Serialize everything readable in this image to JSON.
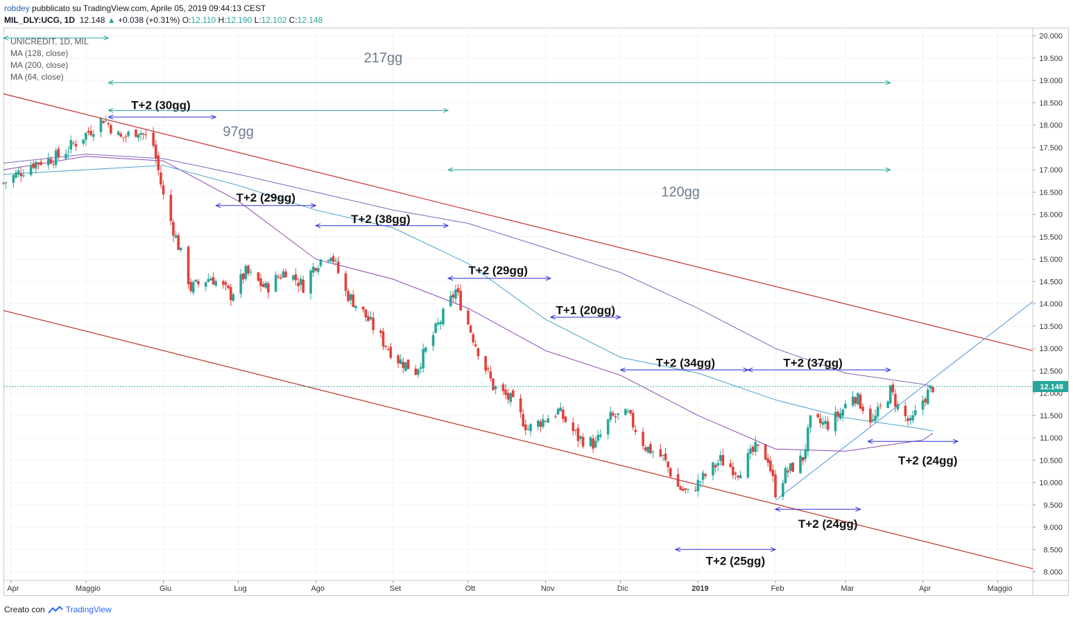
{
  "header": {
    "author": "robdey",
    "published": "pubblicato su TradingView.com, Aprile 05, 2019 09:44:13 CEST",
    "symbol": "MIL_DLY:UCG, 1D",
    "last": "12.148",
    "change": "+0.038 (+0.31%)",
    "o_label": "O:",
    "o": "12.110",
    "h_label": "H:",
    "h": "12.190",
    "l_label": "L:",
    "l": "12.102",
    "c_label": "C:",
    "c": "12.148"
  },
  "legend": {
    "name": "UNICREDIT, 1D, MIL",
    "ma1": "MA (128, close)",
    "ma2": "MA (200, close)",
    "ma3": "MA (64, close)"
  },
  "footer": {
    "created": "Creato con",
    "brand": "TradingView"
  },
  "colors": {
    "up": "#26a69a",
    "down": "#e0413c",
    "ma128": "#4a9fc9",
    "ma200": "#7b64b8",
    "ma64": "#8e44ad",
    "channel": "#c0302b",
    "trend": "#4a90d9",
    "blue_arrow": "#2b2bd6",
    "green_arrow": "#26a69a",
    "badge": "#26a69a"
  },
  "chart_data": {
    "type": "candlestick",
    "symbol": "UNICREDIT",
    "interval": "1D",
    "exchange": "MIL",
    "ylim": [
      7.9,
      20.15
    ],
    "y_ticks": [
      "20.000",
      "19.500",
      "19.000",
      "18.500",
      "18.000",
      "17.500",
      "17.000",
      "16.500",
      "16.000",
      "15.500",
      "15.000",
      "14.500",
      "14.000",
      "13.500",
      "13.000",
      "12.500",
      "12.000",
      "11.500",
      "11.000",
      "10.500",
      "10.000",
      "9.500",
      "9.000",
      "8.500",
      "8.000"
    ],
    "x_ticks": [
      {
        "label": "Apr",
        "date": "2018-04-01"
      },
      {
        "label": "Maggio",
        "date": "2018-05-01"
      },
      {
        "label": "Giu",
        "date": "2018-06-01"
      },
      {
        "label": "Lug",
        "date": "2018-07-01"
      },
      {
        "label": "Ago",
        "date": "2018-08-01"
      },
      {
        "label": "Set",
        "date": "2018-09-01"
      },
      {
        "label": "Ott",
        "date": "2018-10-01"
      },
      {
        "label": "Nov",
        "date": "2018-11-01"
      },
      {
        "label": "Dic",
        "date": "2018-12-01"
      },
      {
        "label": "2019",
        "date": "2019-01-01"
      },
      {
        "label": "Feb",
        "date": "2019-02-01"
      },
      {
        "label": "Mar",
        "date": "2019-03-01"
      },
      {
        "label": "Apr",
        "date": "2019-04-01"
      },
      {
        "label": "Maggio",
        "date": "2019-05-01"
      }
    ],
    "x_range": [
      "2018-03-29",
      "2019-05-15"
    ],
    "last_price": 12.148,
    "last_price_label": "12.148",
    "close_path": [
      [
        "2018-03-29",
        16.7
      ],
      [
        "2018-04-10",
        17.15
      ],
      [
        "2018-04-20",
        17.3
      ],
      [
        "2018-05-01",
        17.8
      ],
      [
        "2018-05-08",
        18.15
      ],
      [
        "2018-05-15",
        17.7
      ],
      [
        "2018-05-22",
        17.9
      ],
      [
        "2018-05-28",
        17.55
      ],
      [
        "2018-06-01",
        16.4
      ],
      [
        "2018-06-07",
        15.3
      ],
      [
        "2018-06-12",
        14.35
      ],
      [
        "2018-06-20",
        14.6
      ],
      [
        "2018-06-28",
        14.2
      ],
      [
        "2018-07-04",
        14.7
      ],
      [
        "2018-07-12",
        14.35
      ],
      [
        "2018-07-20",
        14.75
      ],
      [
        "2018-07-27",
        14.4
      ],
      [
        "2018-08-01",
        14.9
      ],
      [
        "2018-08-07",
        15.15
      ],
      [
        "2018-08-13",
        14.25
      ],
      [
        "2018-08-20",
        13.8
      ],
      [
        "2018-08-28",
        13.15
      ],
      [
        "2018-09-03",
        12.75
      ],
      [
        "2018-09-10",
        12.5
      ],
      [
        "2018-09-17",
        13.3
      ],
      [
        "2018-09-26",
        14.3
      ],
      [
        "2018-10-04",
        13.1
      ],
      [
        "2018-10-11",
        12.15
      ],
      [
        "2018-10-18",
        11.85
      ],
      [
        "2018-10-25",
        11.2
      ],
      [
        "2018-10-31",
        11.4
      ],
      [
        "2018-11-06",
        11.6
      ],
      [
        "2018-11-14",
        11.0
      ],
      [
        "2018-11-21",
        10.85
      ],
      [
        "2018-11-27",
        11.45
      ],
      [
        "2018-12-04",
        11.5
      ],
      [
        "2018-12-11",
        10.8
      ],
      [
        "2018-12-18",
        10.55
      ],
      [
        "2018-12-24",
        9.9
      ],
      [
        "2018-12-28",
        9.75
      ],
      [
        "2019-01-03",
        10.1
      ],
      [
        "2019-01-10",
        10.5
      ],
      [
        "2019-01-17",
        10.25
      ],
      [
        "2019-01-24",
        10.75
      ],
      [
        "2019-01-29",
        10.55
      ],
      [
        "2019-02-01",
        9.8
      ],
      [
        "2019-02-05",
        10.2
      ],
      [
        "2019-02-12",
        10.55
      ],
      [
        "2019-02-15",
        11.35
      ],
      [
        "2019-02-22",
        11.3
      ],
      [
        "2019-02-27",
        11.55
      ],
      [
        "2019-03-04",
        12.0
      ],
      [
        "2019-03-08",
        11.7
      ],
      [
        "2019-03-12",
        11.35
      ],
      [
        "2019-03-19",
        12.05
      ],
      [
        "2019-03-22",
        11.7
      ],
      [
        "2019-03-27",
        11.3
      ],
      [
        "2019-04-01",
        11.85
      ],
      [
        "2019-04-05",
        12.148
      ]
    ],
    "moving_averages": [
      {
        "name": "MA (64, close)",
        "points": [
          [
            "2018-03-29",
            17.0
          ],
          [
            "2018-05-01",
            17.3
          ],
          [
            "2018-06-01",
            17.2
          ],
          [
            "2018-07-01",
            16.3
          ],
          [
            "2018-08-01",
            15.0
          ],
          [
            "2018-09-01",
            14.55
          ],
          [
            "2018-10-01",
            13.9
          ],
          [
            "2018-11-01",
            12.95
          ],
          [
            "2018-12-01",
            12.4
          ],
          [
            "2019-01-01",
            11.5
          ],
          [
            "2019-02-01",
            10.75
          ],
          [
            "2019-03-01",
            10.7
          ],
          [
            "2019-04-01",
            10.95
          ],
          [
            "2019-04-05",
            11.1
          ]
        ]
      },
      {
        "name": "MA (128, close)",
        "points": [
          [
            "2018-03-29",
            16.9
          ],
          [
            "2018-05-01",
            17.0
          ],
          [
            "2018-06-01",
            17.1
          ],
          [
            "2018-07-01",
            16.65
          ],
          [
            "2018-08-01",
            16.1
          ],
          [
            "2018-09-01",
            15.7
          ],
          [
            "2018-10-01",
            14.9
          ],
          [
            "2018-11-01",
            13.65
          ],
          [
            "2018-12-01",
            12.8
          ],
          [
            "2019-01-01",
            12.45
          ],
          [
            "2019-02-01",
            11.85
          ],
          [
            "2019-03-01",
            11.45
          ],
          [
            "2019-04-01",
            11.2
          ],
          [
            "2019-04-05",
            11.15
          ]
        ]
      },
      {
        "name": "MA (200, close)",
        "points": [
          [
            "2018-03-29",
            17.15
          ],
          [
            "2018-05-01",
            17.35
          ],
          [
            "2018-06-01",
            17.25
          ],
          [
            "2018-07-01",
            16.9
          ],
          [
            "2018-08-01",
            16.5
          ],
          [
            "2018-09-01",
            16.1
          ],
          [
            "2018-10-01",
            15.8
          ],
          [
            "2018-11-01",
            15.25
          ],
          [
            "2018-12-01",
            14.7
          ],
          [
            "2019-01-01",
            13.9
          ],
          [
            "2019-02-01",
            13.0
          ],
          [
            "2019-03-01",
            12.45
          ],
          [
            "2019-04-01",
            12.2
          ],
          [
            "2019-04-05",
            12.15
          ]
        ]
      }
    ],
    "channel_lines": [
      {
        "from": [
          "2018-03-29",
          18.7
        ],
        "to": [
          "2019-05-15",
          12.95
        ]
      },
      {
        "from": [
          "2018-03-29",
          13.85
        ],
        "to": [
          "2019-05-15",
          8.07
        ]
      }
    ],
    "trend_line": {
      "from": [
        "2019-02-01",
        9.6
      ],
      "to": [
        "2019-05-15",
        14.05
      ]
    },
    "annotations": [
      {
        "text": "T+2 (30gg)",
        "from": "2018-05-10",
        "to": "2018-06-22",
        "y": 18.18,
        "color": "blue",
        "label_date": "2018-05-31",
        "label_y": 18.45
      },
      {
        "text": "T+2 (29gg)",
        "from": "2018-06-22",
        "to": "2018-08-01",
        "y": 16.2,
        "color": "blue",
        "label_date": "2018-07-12",
        "label_y": 16.38
      },
      {
        "text": "T+2 (38gg)",
        "from": "2018-08-01",
        "to": "2018-09-23",
        "y": 15.75,
        "color": "blue",
        "label_date": "2018-08-27",
        "label_y": 15.9
      },
      {
        "text": "T+2 (29gg)",
        "from": "2018-09-23",
        "to": "2018-11-03",
        "y": 14.57,
        "color": "blue",
        "label_date": "2018-10-13",
        "label_y": 14.75
      },
      {
        "text": "T+1 (20gg)",
        "from": "2018-11-03",
        "to": "2018-12-01",
        "y": 13.7,
        "color": "blue",
        "label_date": "2018-11-17",
        "label_y": 13.86
      },
      {
        "text": "T+2 (34gg)",
        "from": "2018-12-01",
        "to": "2019-01-21",
        "y": 12.52,
        "color": "blue",
        "label_date": "2018-12-27",
        "label_y": 12.68
      },
      {
        "text": "T+2 (37gg)",
        "from": "2019-01-21",
        "to": "2019-03-19",
        "y": 12.52,
        "color": "blue",
        "label_date": "2019-02-16",
        "label_y": 12.68
      },
      {
        "text": "T+2 (24gg)",
        "from": "2019-03-10",
        "to": "2019-04-15",
        "y": 10.92,
        "color": "blue",
        "label_date": "2019-04-03",
        "label_y": 10.5
      },
      {
        "text": "T+2 (24gg)",
        "from": "2019-02-01",
        "to": "2019-03-07",
        "y": 9.4,
        "color": "blue",
        "label_date": "2019-02-22",
        "label_y": 9.08
      },
      {
        "text": "T+2 (25gg)",
        "from": "2018-12-23",
        "to": "2019-02-01",
        "y": 8.5,
        "color": "blue",
        "label_date": "2019-01-16",
        "label_y": 8.25
      },
      {
        "text": "217gg",
        "from": "2018-05-10",
        "to": "2019-03-19",
        "y": 18.95,
        "color": "green",
        "label_date": "2018-08-28",
        "label_y": 19.5
      },
      {
        "text": "97gg",
        "from": "2018-05-10",
        "to": "2018-09-23",
        "y": 18.33,
        "color": "green",
        "label_date": "2018-07-01",
        "label_y": 17.85
      },
      {
        "text": "120gg",
        "from": "2018-09-23",
        "to": "2019-03-19",
        "y": 17.0,
        "color": "green",
        "label_date": "2018-12-25",
        "label_y": 16.5
      },
      {
        "text": "",
        "from": "2018-03-29",
        "to": "2018-05-10",
        "y": 19.95,
        "color": "green",
        "label_date": "2018-04-20",
        "label_y": 19.95
      }
    ]
  }
}
